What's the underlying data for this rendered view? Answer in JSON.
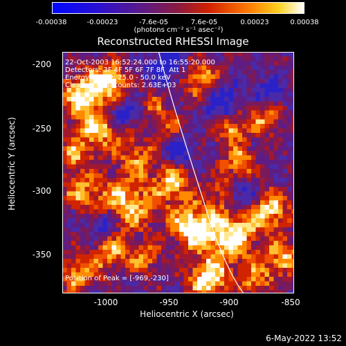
{
  "colorbar": {
    "ticks": [
      "-0.00038",
      "-0.00023",
      "-7.6e-05",
      "7.6e-05",
      "0.00023",
      "0.00038"
    ],
    "unit_label": "(photons cm⁻² s⁻¹ asec⁻²)"
  },
  "plot": {
    "title": "Reconstructed RHESSI Image",
    "xlabel": "Heliocentric X (arcsec)",
    "ylabel": "Heliocentric Y (arcsec)",
    "x_ticks": [
      "-1000",
      "-950",
      "-900",
      "-850"
    ],
    "y_ticks": [
      "-200",
      "-250",
      "-300",
      "-350"
    ],
    "x_range": [
      -1045,
      -850
    ],
    "y_range": [
      -385,
      -180
    ],
    "info_lines": [
      "22-Oct-2003 16:52:24.000 to 16:55:20.000",
      "Detectors: 3F 4F 5F 6F 7F 8F  Att 1",
      "Energy Range: 25.0 - 50.0 keV",
      "Clean     Total counts: 2.63E+03"
    ],
    "peak_label": "Position of Peak = [-969,-230]",
    "colors": {
      "negative_max": "#0000ff",
      "zero": "#5a1a8a",
      "mid": "#e03000",
      "positive_max": "#ffffff"
    }
  },
  "footer": {
    "timestamp": "6-May-2022 13:52"
  }
}
